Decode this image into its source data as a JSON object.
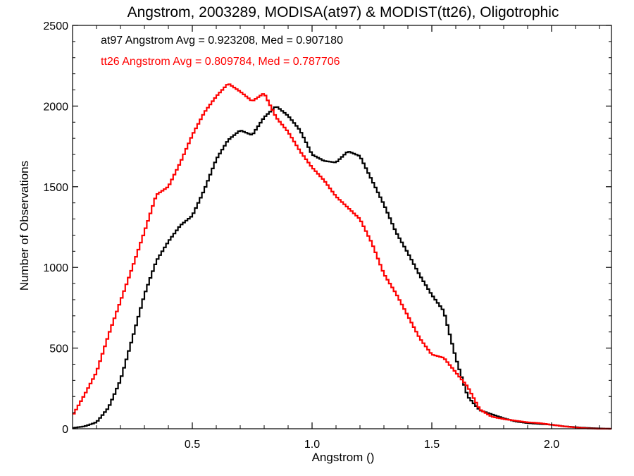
{
  "chart_data": {
    "type": "line",
    "title": "Angstrom, 2003289, MODISA(at97) & MODIST(tt26), Oligotrophic",
    "xlabel": "Angstrom ()",
    "ylabel": "Number of Observations",
    "xlim": [
      0.0,
      2.25
    ],
    "ylim": [
      0,
      2500
    ],
    "xticks": [
      0.5,
      1.0,
      1.5,
      2.0
    ],
    "xtick_labels": [
      "0.5",
      "1.0",
      "1.5",
      "2.0"
    ],
    "yticks": [
      0,
      500,
      1000,
      1500,
      2000,
      2500
    ],
    "ytick_labels": [
      "0",
      "500",
      "1000",
      "1500",
      "2000",
      "2500"
    ],
    "grid": false,
    "annotations": [
      {
        "text": "at97 Angstrom Avg = 0.923208, Med = 0.907180",
        "color": "#000000"
      },
      {
        "text": "tt26 Angstrom Avg = 0.809784, Med = 0.787706",
        "color": "#ff0000"
      }
    ],
    "series": [
      {
        "color": "#000000",
        "x": [
          0.0,
          0.05,
          0.1,
          0.15,
          0.2,
          0.25,
          0.3,
          0.35,
          0.4,
          0.45,
          0.5,
          0.55,
          0.6,
          0.65,
          0.7,
          0.75,
          0.8,
          0.85,
          0.9,
          0.95,
          1.0,
          1.05,
          1.1,
          1.15,
          1.2,
          1.25,
          1.3,
          1.35,
          1.4,
          1.45,
          1.5,
          1.55,
          1.6,
          1.65,
          1.7,
          1.75,
          1.8,
          1.85,
          1.9,
          1.95,
          2.0,
          2.05,
          2.1,
          2.15,
          2.2,
          2.25
        ],
        "y": [
          5,
          15,
          40,
          130,
          300,
          560,
          830,
          1040,
          1160,
          1260,
          1320,
          1480,
          1670,
          1790,
          1850,
          1820,
          1930,
          2000,
          1940,
          1850,
          1700,
          1660,
          1650,
          1720,
          1690,
          1540,
          1390,
          1220,
          1090,
          950,
          830,
          730,
          440,
          200,
          115,
          90,
          65,
          45,
          35,
          30,
          25,
          15,
          10,
          5,
          2,
          0
        ]
      },
      {
        "color": "#ff0000",
        "x": [
          0.0,
          0.05,
          0.1,
          0.15,
          0.2,
          0.25,
          0.3,
          0.35,
          0.4,
          0.45,
          0.5,
          0.55,
          0.6,
          0.65,
          0.7,
          0.75,
          0.8,
          0.85,
          0.9,
          0.95,
          1.0,
          1.05,
          1.1,
          1.15,
          1.2,
          1.25,
          1.3,
          1.35,
          1.4,
          1.45,
          1.5,
          1.55,
          1.6,
          1.65,
          1.7,
          1.75,
          1.8,
          1.85,
          1.9,
          1.95,
          2.0,
          2.05,
          2.1,
          2.15,
          2.2,
          2.25
        ],
        "y": [
          80,
          210,
          350,
          580,
          790,
          1000,
          1220,
          1450,
          1500,
          1650,
          1820,
          1960,
          2060,
          2140,
          2090,
          2030,
          2080,
          1930,
          1840,
          1720,
          1620,
          1540,
          1440,
          1370,
          1300,
          1150,
          960,
          840,
          700,
          560,
          460,
          440,
          350,
          260,
          120,
          75,
          60,
          50,
          40,
          35,
          25,
          15,
          8,
          2,
          0,
          0
        ]
      }
    ]
  }
}
